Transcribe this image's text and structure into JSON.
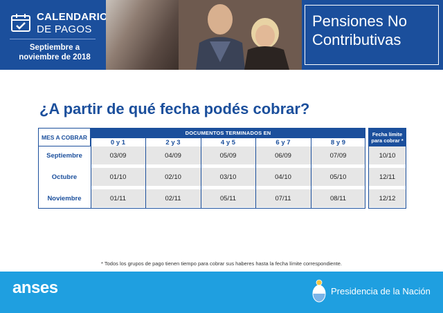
{
  "header": {
    "calendar_title_line1": "CALENDARIO",
    "calendar_title_line2": "DE PAGOS",
    "period_line1": "Septiembre a",
    "period_line2": "noviembre de 2018",
    "program_line1": "Pensiones No",
    "program_line2": "Contributivas"
  },
  "question": "¿A partir de qué fecha podés cobrar?",
  "table": {
    "mes_header": "MES A COBRAR",
    "docs_header": "DOCUMENTOS TERMINADOS EN",
    "columns": [
      "0 y 1",
      "2 y 3",
      "4 y 5",
      "6 y 7",
      "8 y 9"
    ],
    "limit_header_line1": "Fecha límite",
    "limit_header_line2": "para cobrar *",
    "rows": [
      {
        "month": "Septiembre",
        "values": [
          "03/09",
          "04/09",
          "05/09",
          "06/09",
          "07/09"
        ],
        "limit": "10/10"
      },
      {
        "month": "Octubre",
        "values": [
          "01/10",
          "02/10",
          "03/10",
          "04/10",
          "05/10"
        ],
        "limit": "12/11"
      },
      {
        "month": "Noviembre",
        "values": [
          "01/11",
          "02/11",
          "05/11",
          "07/11",
          "08/11"
        ],
        "limit": "12/12"
      }
    ]
  },
  "footnote": "* Todos los grupos de pago tienen tiempo para cobrar sus haberes hasta la fecha límite correspondiente.",
  "footer": {
    "brand": "anses",
    "presidencia": "Presidencia de la Nación"
  },
  "colors": {
    "primary_blue": "#1b4f9c",
    "footer_blue": "#1f9fe0",
    "row_grey": "#e6e6e6"
  },
  "icons": [
    "calendar-check-icon",
    "argentina-shield-icon"
  ]
}
